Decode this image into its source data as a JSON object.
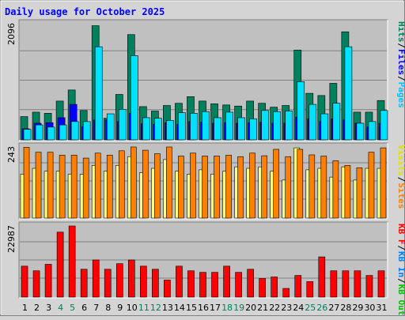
{
  "chart_data": {
    "type": "bar",
    "title": "Daily usage for October 2025",
    "categories": [
      "1",
      "2",
      "3",
      "4",
      "5",
      "6",
      "7",
      "8",
      "9",
      "10",
      "11",
      "12",
      "13",
      "14",
      "15",
      "16",
      "17",
      "18",
      "19",
      "20",
      "21",
      "22",
      "23",
      "24",
      "25",
      "26",
      "27",
      "28",
      "29",
      "30",
      "31"
    ],
    "weekend_days": [
      "4",
      "5",
      "11",
      "12",
      "18",
      "19",
      "25",
      "26"
    ],
    "panels": [
      {
        "name": "requests",
        "y_max_label": "2096",
        "ylim": [
          0,
          2096
        ],
        "side_legend": [
          {
            "text": "Hits",
            "color": "#00805c"
          },
          {
            "text": "/",
            "color": "#000000"
          },
          {
            "text": "Files",
            "color": "#0000ff"
          },
          {
            "text": "/",
            "color": "#000000"
          },
          {
            "text": "Pages",
            "color": "#00c0ff"
          }
        ],
        "series": [
          {
            "name": "Hits",
            "color": "#00805c",
            "values": [
              420,
              500,
              480,
              700,
              900,
              530,
              2060,
              390,
              820,
              1900,
              600,
              520,
              620,
              660,
              780,
              700,
              650,
              630,
              610,
              700,
              660,
              590,
              620,
              1620,
              840,
              800,
              1020,
              1950,
              500,
              500,
              710
            ]
          },
          {
            "name": "Files",
            "color": "#0000ff",
            "values": [
              200,
              300,
              310,
              400,
              640,
              240,
              360,
              360,
              330,
              480,
              290,
              280,
              310,
              280,
              330,
              320,
              300,
              310,
              300,
              310,
              320,
              300,
              300,
              410,
              380,
              330,
              380,
              360,
              300,
              230,
              300
            ]
          },
          {
            "name": "Pages",
            "color": "#00e0ff",
            "values": [
              190,
              270,
              230,
              270,
              330,
              330,
              1680,
              470,
              550,
              1520,
              400,
              390,
              350,
              490,
              480,
              510,
              400,
              500,
              400,
              380,
              530,
              510,
              520,
              1050,
              640,
              470,
              660,
              1680,
              300,
              330,
              530
            ]
          }
        ]
      },
      {
        "name": "visits",
        "y_max_label": "243",
        "ylim": [
          0,
          243
        ],
        "side_legend": [
          {
            "text": "Visits",
            "color": "#e0e000"
          },
          {
            "text": "/",
            "color": "#000000"
          },
          {
            "text": "Sites",
            "color": "#ff8000"
          }
        ],
        "series": [
          {
            "name": "Visits",
            "color": "#ffff80",
            "values": [
              150,
              170,
              160,
              160,
              150,
              150,
              180,
              160,
              180,
              210,
              155,
              170,
              200,
              160,
              150,
              165,
              150,
              160,
              175,
              170,
              175,
              160,
              130,
              240,
              165,
              170,
              140,
              175,
              130,
              170,
              170
            ]
          },
          {
            "name": "Sites",
            "color": "#ff8000",
            "values": [
              242,
              225,
              225,
              215,
              215,
              205,
              222,
              215,
              230,
              243,
              232,
              220,
              243,
              212,
              222,
              212,
              212,
              215,
              210,
              222,
              213,
              235,
              210,
              235,
              216,
              212,
              196,
              180,
              172,
              225,
              240
            ]
          }
        ]
      },
      {
        "name": "kbytes",
        "y_max_label": "22987",
        "ylim": [
          0,
          22987
        ],
        "side_legend": [
          {
            "text": "KB F",
            "color": "#ff0000"
          },
          {
            "text": "/",
            "color": "#000000"
          },
          {
            "text": "KB In",
            "color": "#0080ff"
          },
          {
            "text": "/",
            "color": "#000000"
          },
          {
            "text": "KB Out",
            "color": "#00c000"
          }
        ],
        "series": [
          {
            "name": "KB F",
            "color": "#ff0000",
            "values": [
              10000,
              8500,
              10600,
              21000,
              22987,
              9000,
              12000,
              9000,
              10800,
              12000,
              10000,
              9000,
              5500,
              10000,
              8500,
              8000,
              8000,
              10000,
              8000,
              9000,
              6000,
              6500,
              2800,
              7000,
              5000,
              13000,
              8500,
              8500,
              8500,
              7000,
              8500
            ]
          }
        ]
      }
    ],
    "grid": true,
    "legend": "right-vertical"
  }
}
